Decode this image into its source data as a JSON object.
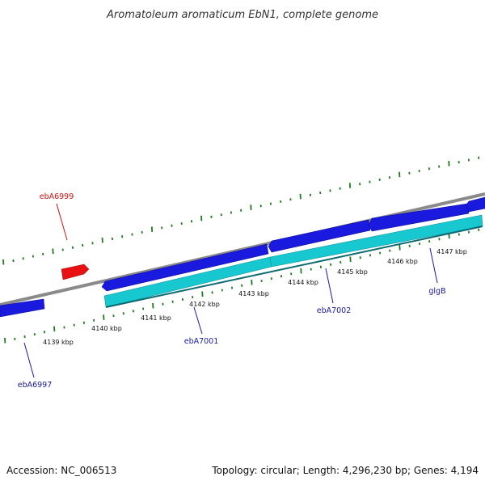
{
  "title": "Aromatoleum aromaticum EbN1, complete genome",
  "footer": {
    "accession": "Accession: NC_006513",
    "summary": "Topology: circular; Length: 4,296,230 bp; Genes: 4,194"
  },
  "colors": {
    "backbone": "#8a8a8a",
    "forward_gene": "#1a1adf",
    "reverse_gene": "#e81010",
    "cds": "#18c8d0",
    "ticks": "#1e7a1e",
    "label_blue": "#1a1aa0",
    "label_red": "#cc1111"
  },
  "scale": {
    "unit": "kbp",
    "labels": [
      "4139 kbp",
      "4140 kbp",
      "4141 kbp",
      "4142 kbp",
      "4143 kbp",
      "4144 kbp",
      "4145 kbp",
      "4146 kbp",
      "4147 kbp"
    ]
  },
  "gene_labels": [
    {
      "name": "ebA6999",
      "strand": "reverse"
    },
    {
      "name": "ebA6997",
      "strand": "forward"
    },
    {
      "name": "ebA7001",
      "strand": "forward"
    },
    {
      "name": "ebA7002",
      "strand": "forward"
    },
    {
      "name": "glgB",
      "strand": "forward"
    }
  ]
}
